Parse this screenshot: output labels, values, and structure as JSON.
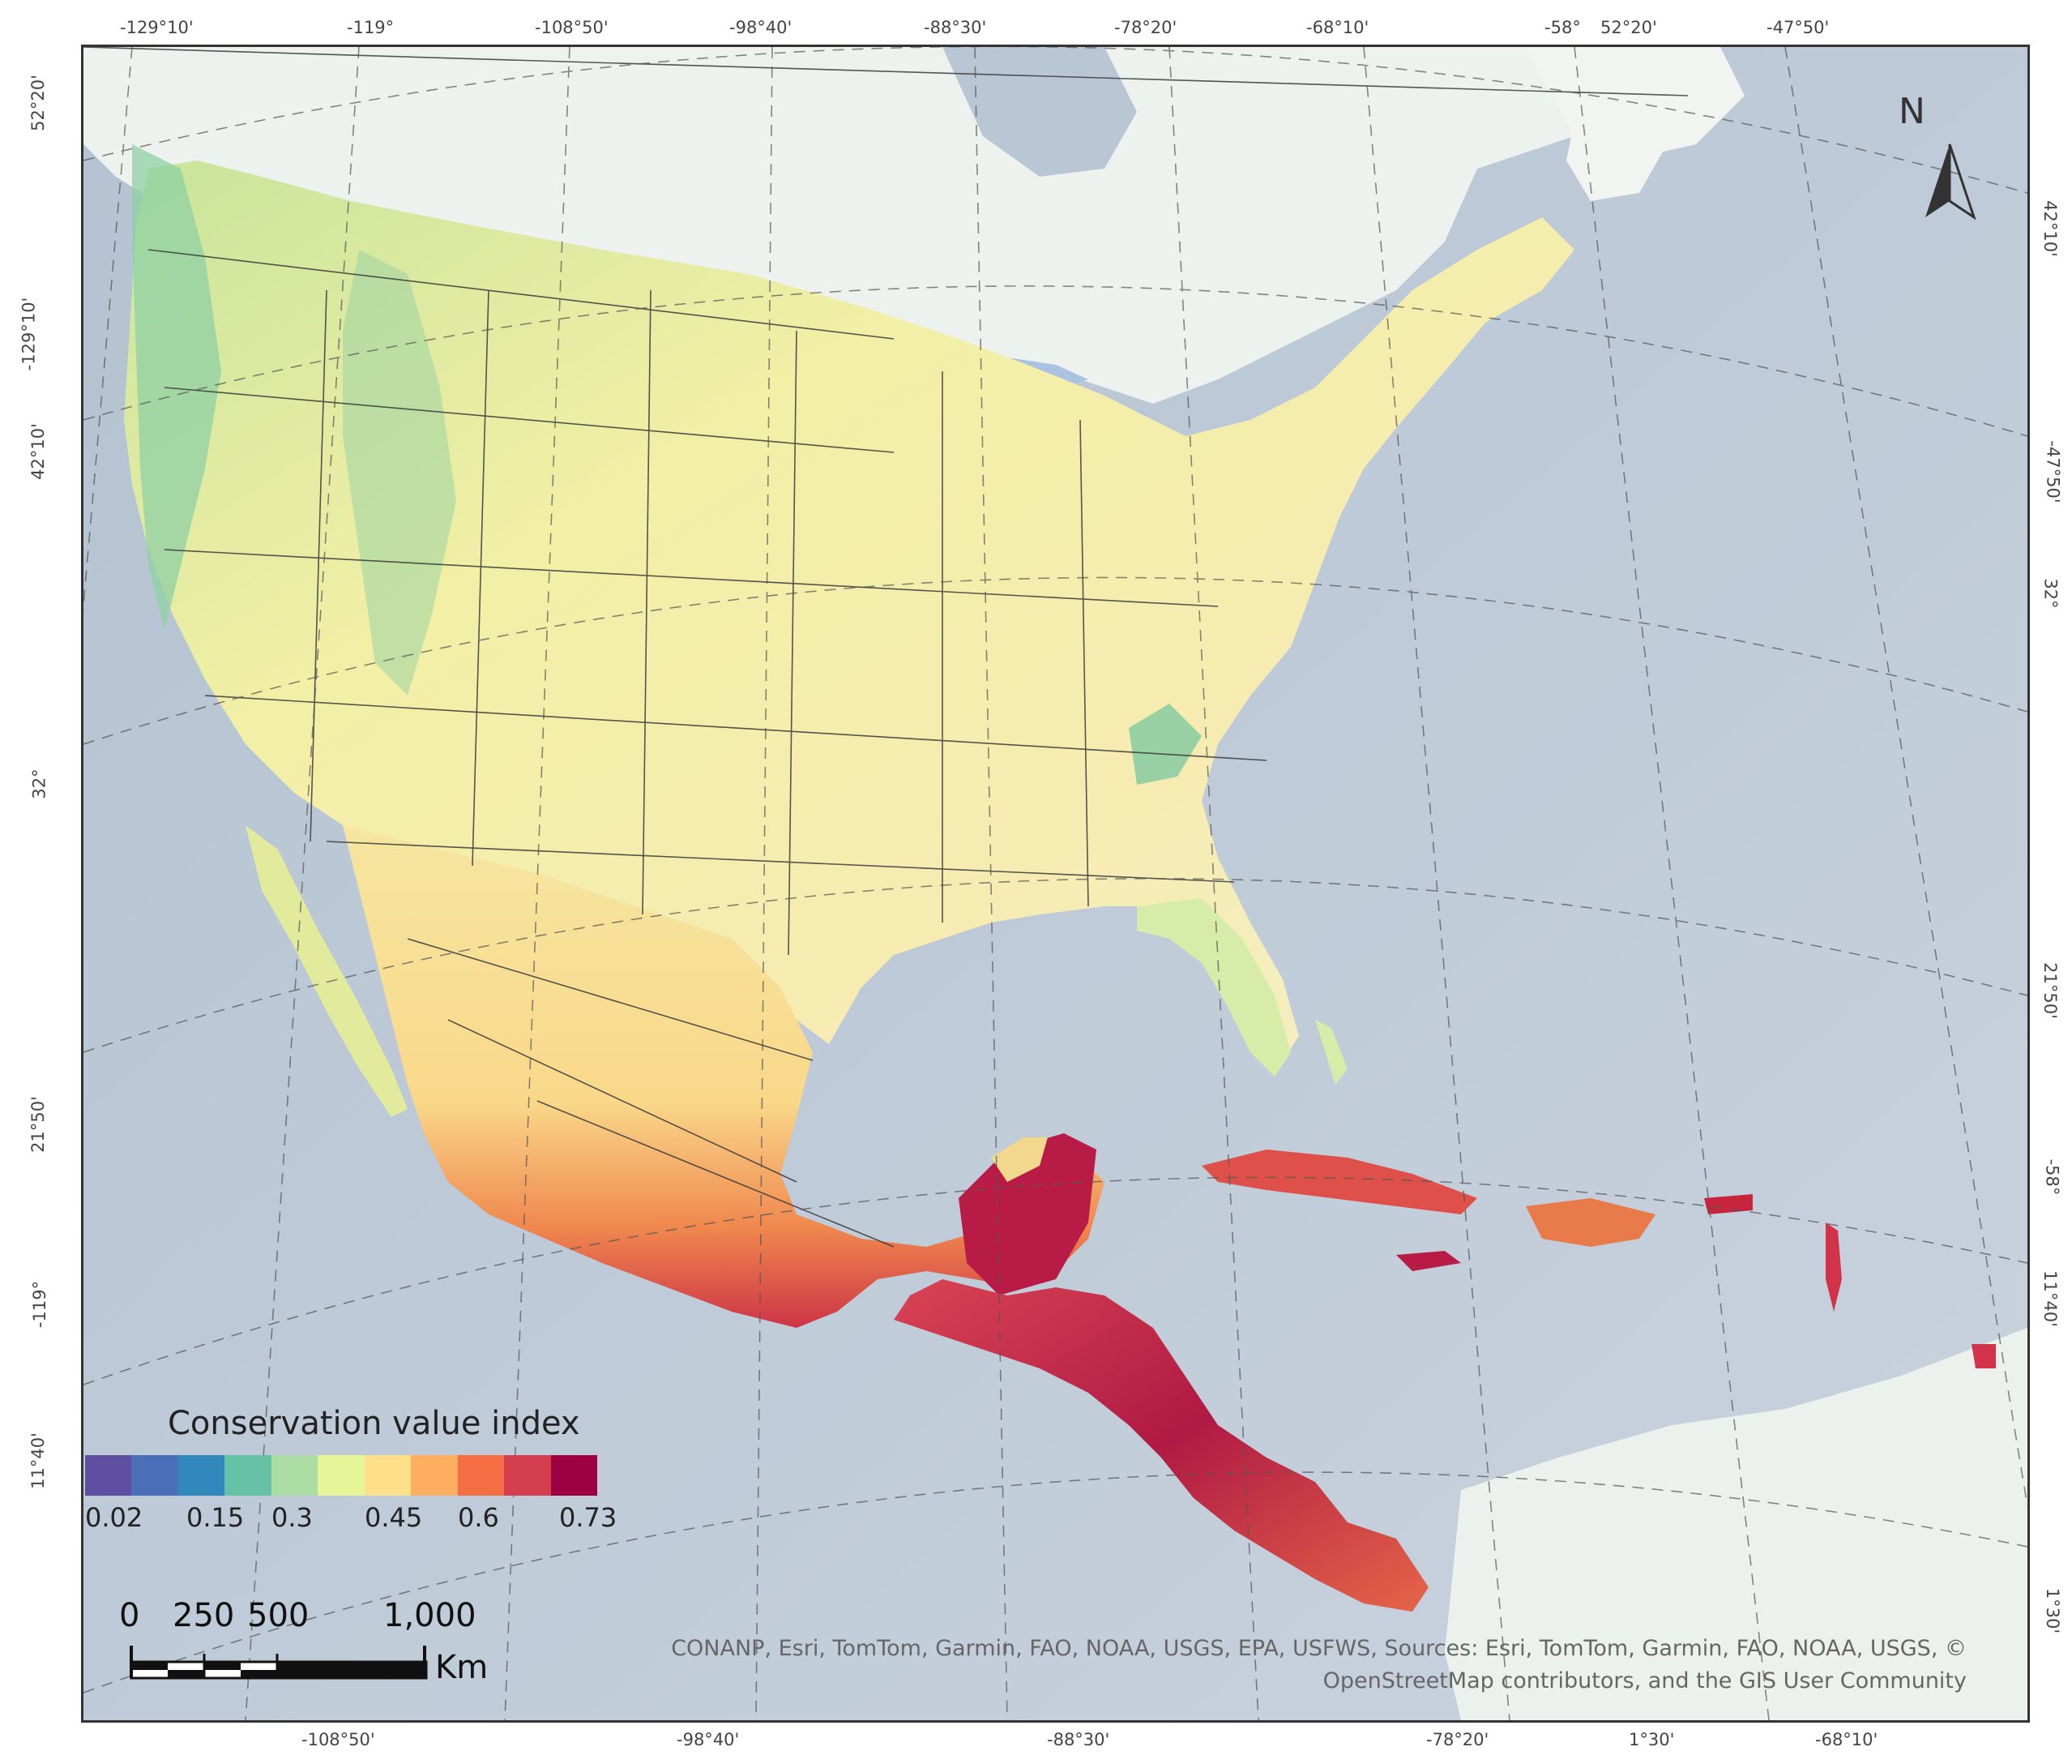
{
  "map": {
    "legend": {
      "title": "Conservation value index",
      "colors": [
        "#5e4fa2",
        "#4a6fb8",
        "#3288bd",
        "#66c2a5",
        "#abdda4",
        "#e6f598",
        "#fee08b",
        "#fdae61",
        "#f46d43",
        "#d53e4f",
        "#9e0142"
      ],
      "labels": [
        "0.02",
        "0.15",
        "0.3",
        "0.45",
        "0.6",
        "0.73"
      ]
    },
    "scale": {
      "labels": [
        "0",
        "250",
        "500",
        "1,000"
      ],
      "unit": "Km"
    },
    "north_arrow": "N",
    "attribution": {
      "line1": "CONANP, Esri, TomTom, Garmin, FAO, NOAA, USGS, EPA, USFWS, Sources: Esri, TomTom, Garmin, FAO, NOAA, USGS, ©",
      "line2": "OpenStreetMap contributors, and the GIS User Community"
    },
    "graticule": {
      "top": [
        "-129°10'",
        "-119°",
        "-108°50'",
        "-98°40'",
        "-88°30'",
        "-78°20'",
        "-68°10'",
        "-58°",
        "52°20'",
        "-47°50'"
      ],
      "bottom": [
        "-108°50'",
        "-98°40'",
        "-88°30'",
        "-78°20'",
        "1°30'",
        "-68°10'"
      ],
      "left": [
        "52°20'",
        "-129°10'",
        "42°10'",
        "32°",
        "21°50'",
        "-119°",
        "11°40'"
      ],
      "right": [
        "42°10'",
        "-47°50'",
        "32°",
        "21°50'",
        "-58°",
        "11°40'",
        "1°30'"
      ]
    },
    "colors": {
      "ocean": "#b9c6d4",
      "deep_ocean": "#c8d2dd",
      "canada_land": "#eef2ee",
      "south_america": "#edf1ed",
      "lakes": "#a9c3e0",
      "border": "#3a3a3a"
    }
  }
}
